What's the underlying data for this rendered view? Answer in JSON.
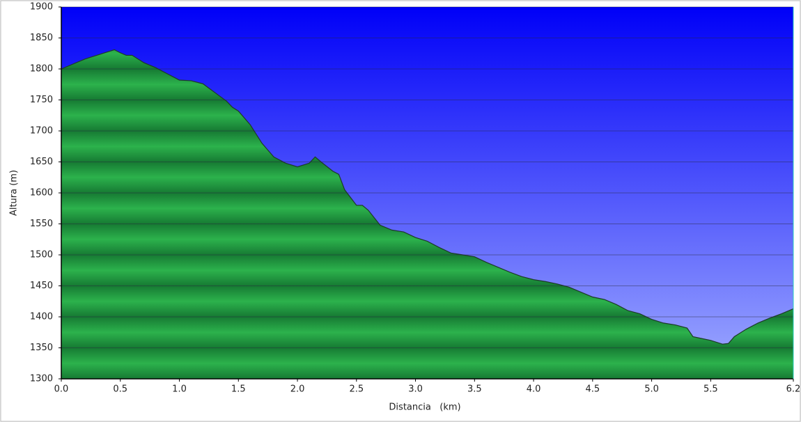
{
  "chart_data": {
    "type": "area",
    "x_label": "Distancia   (km)",
    "y_label": "Altura (m)",
    "x": [
      0.0,
      0.1,
      0.2,
      0.3,
      0.4,
      0.45,
      0.5,
      0.55,
      0.6,
      0.7,
      0.8,
      0.9,
      1.0,
      1.1,
      1.2,
      1.3,
      1.4,
      1.45,
      1.5,
      1.6,
      1.7,
      1.8,
      1.9,
      2.0,
      2.1,
      2.15,
      2.2,
      2.3,
      2.35,
      2.4,
      2.5,
      2.55,
      2.6,
      2.7,
      2.8,
      2.9,
      3.0,
      3.1,
      3.2,
      3.3,
      3.4,
      3.5,
      3.6,
      3.7,
      3.8,
      3.9,
      4.0,
      4.1,
      4.2,
      4.3,
      4.4,
      4.5,
      4.6,
      4.7,
      4.8,
      4.9,
      5.0,
      5.1,
      5.2,
      5.3,
      5.35,
      5.4,
      5.5,
      5.6,
      5.65,
      5.7,
      5.8,
      5.9,
      6.0,
      6.1,
      6.2
    ],
    "values": [
      1800,
      1808,
      1816,
      1822,
      1828,
      1831,
      1826,
      1822,
      1822,
      1810,
      1802,
      1792,
      1782,
      1781,
      1776,
      1762,
      1748,
      1738,
      1732,
      1710,
      1680,
      1658,
      1648,
      1642,
      1648,
      1658,
      1650,
      1635,
      1630,
      1605,
      1580,
      1580,
      1572,
      1548,
      1540,
      1537,
      1528,
      1522,
      1512,
      1503,
      1500,
      1497,
      1488,
      1480,
      1472,
      1465,
      1460,
      1457,
      1453,
      1448,
      1440,
      1432,
      1428,
      1420,
      1410,
      1405,
      1396,
      1390,
      1387,
      1382,
      1368,
      1366,
      1362,
      1356,
      1357,
      1368,
      1380,
      1390,
      1398,
      1405,
      1413
    ],
    "color": "#22a645",
    "xlim": [
      0,
      6.2
    ],
    "ylim": [
      1300,
      1900
    ],
    "xticks": [
      {
        "value": 0,
        "label": "0.0"
      },
      0.5,
      {
        "value": 1,
        "label": "1.0"
      },
      1.5,
      {
        "value": 2,
        "label": "2.0"
      },
      2.5,
      {
        "value": 3,
        "label": "3.0"
      },
      3.5,
      {
        "value": 4,
        "label": "4.0"
      },
      4.5,
      {
        "value": 5,
        "label": "5.0"
      },
      5.5,
      6.2
    ],
    "yticks": [
      1300,
      1350,
      1400,
      1450,
      1500,
      1550,
      1600,
      1650,
      1700,
      1750,
      1800,
      1850,
      1900
    ],
    "grid": true
  }
}
